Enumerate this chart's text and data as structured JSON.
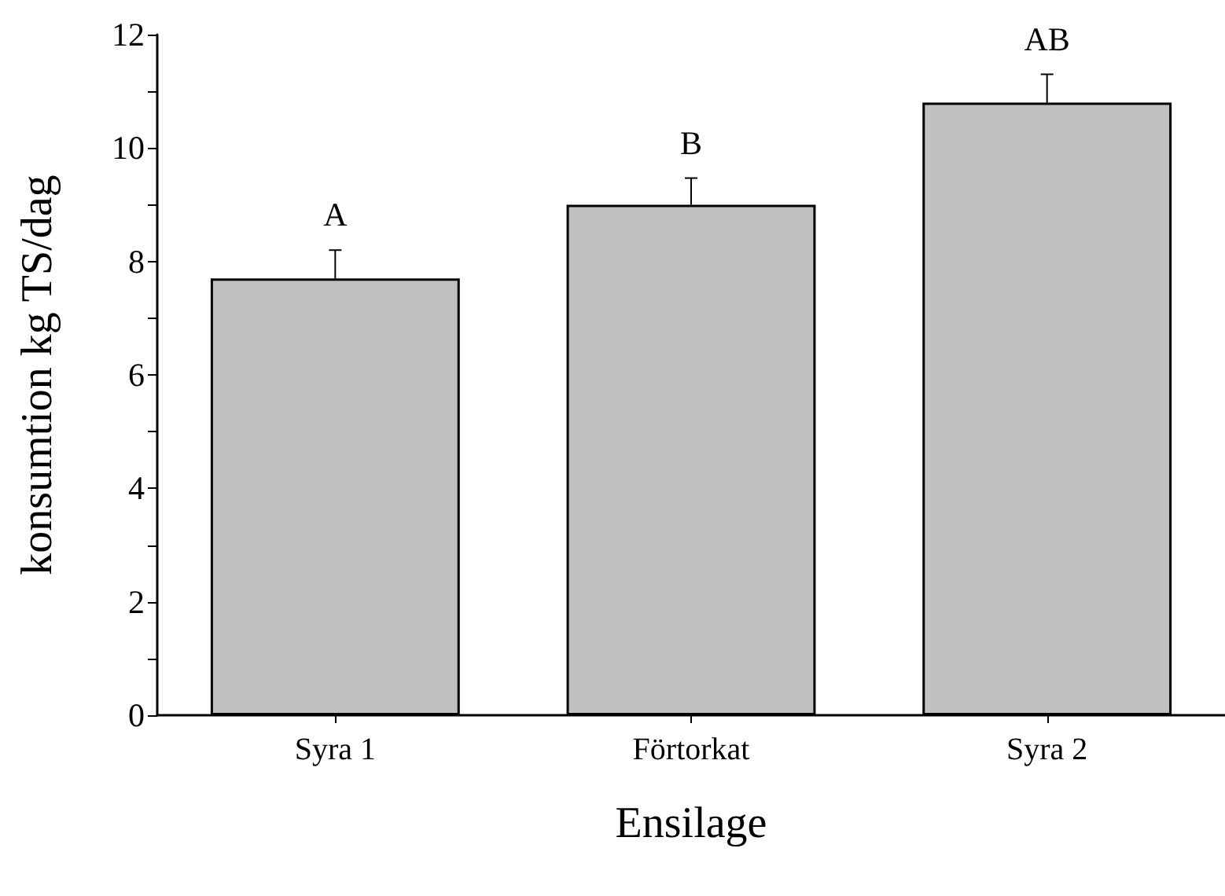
{
  "chart_data": {
    "type": "bar",
    "xlabel": "Ensilage",
    "ylabel": "konsumtion kg TS/dag",
    "categories": [
      "Syra 1",
      "Förtorkat",
      "Syra 2"
    ],
    "values": [
      7.7,
      9.0,
      10.8
    ],
    "color": "#c0c0c0",
    "errors": [
      [
        7.7,
        8.2
      ],
      [
        9.0,
        9.47
      ],
      [
        10.8,
        11.3
      ]
    ],
    "ylim": [
      0,
      12
    ],
    "yticks": [
      0,
      {
        "value": 1,
        "label": null
      },
      2,
      {
        "value": 3,
        "label": null
      },
      4,
      {
        "value": 5,
        "label": null
      },
      6,
      {
        "value": 7,
        "label": null
      },
      8,
      {
        "value": 9,
        "label": null
      },
      10,
      {
        "value": 11,
        "label": null
      },
      12
    ],
    "annotations": [
      "A",
      "B",
      "AB"
    ]
  }
}
